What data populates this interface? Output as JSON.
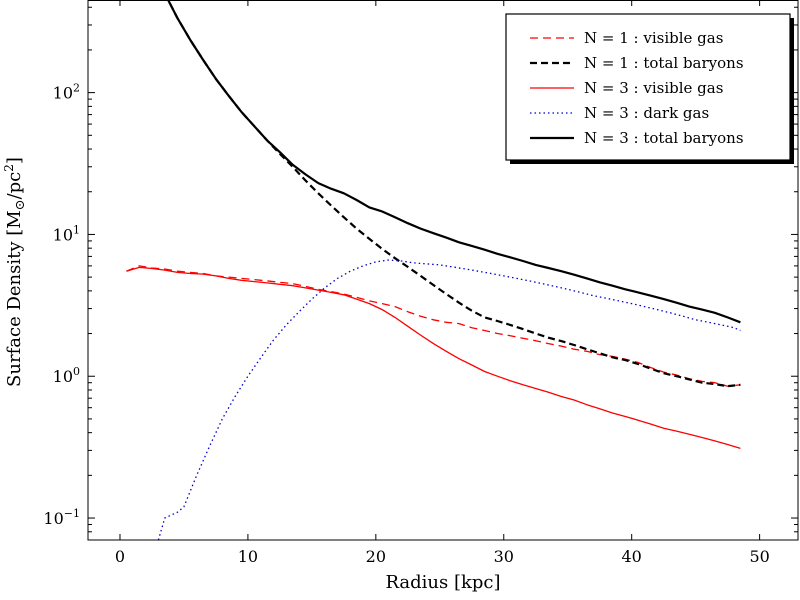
{
  "chart_data": {
    "type": "line",
    "xlabel": "Radius [kpc]",
    "ylabel": "Surface Density [M",
    "ylabel_sub": "⊙",
    "ylabel_tail": "/pc",
    "ylabel_sup": "2",
    "ylabel_close": "]",
    "xlim": [
      -2.5,
      53
    ],
    "ylim": [
      0.07,
      450
    ],
    "yscale": "log",
    "grid": false,
    "legend_position": "top-right",
    "x_ticks": [
      {
        "value": 0,
        "label": "0"
      },
      {
        "value": 10,
        "label": "10"
      },
      {
        "value": 20,
        "label": "20"
      },
      {
        "value": 30,
        "label": "30"
      },
      {
        "value": 40,
        "label": "40"
      },
      {
        "value": 50,
        "label": "50"
      }
    ],
    "y_ticks": [
      {
        "value": 0.1,
        "base": "10",
        "exp": "−1"
      },
      {
        "value": 1,
        "base": "10",
        "exp": "0"
      },
      {
        "value": 10,
        "base": "10",
        "exp": "1"
      },
      {
        "value": 100,
        "base": "10",
        "exp": "2"
      }
    ],
    "series": [
      {
        "name": "N = 1 : visible gas",
        "color": "#ff0000",
        "style": "dashed",
        "width": "normal",
        "x": [
          0.5,
          1.5,
          2.5,
          3.5,
          4.5,
          5.5,
          6.5,
          7.5,
          8.5,
          9.5,
          10.5,
          11.5,
          12.5,
          13.5,
          14.5,
          15.5,
          16.5,
          17.5,
          18.5,
          19.5,
          20.5,
          21.5,
          22.5,
          23.5,
          24.5,
          25.5,
          26.5,
          27.5,
          28.5,
          29.5,
          30.5,
          31.5,
          32.5,
          33.5,
          34.5,
          35.5,
          36.5,
          37.5,
          38.5,
          39.5,
          40.5,
          41.5,
          42.5,
          43.5,
          44.5,
          45.5,
          46.5,
          47.5,
          48.5
        ],
        "y": [
          5.5,
          6.0,
          5.8,
          5.7,
          5.5,
          5.4,
          5.3,
          5.1,
          5.0,
          4.9,
          4.8,
          4.7,
          4.6,
          4.5,
          4.3,
          4.1,
          3.95,
          3.8,
          3.6,
          3.4,
          3.25,
          3.1,
          2.85,
          2.65,
          2.5,
          2.4,
          2.35,
          2.2,
          2.1,
          2.0,
          1.93,
          1.85,
          1.78,
          1.7,
          1.63,
          1.55,
          1.5,
          1.42,
          1.38,
          1.32,
          1.25,
          1.15,
          1.07,
          1.02,
          0.96,
          0.92,
          0.9,
          0.85,
          0.87
        ]
      },
      {
        "name": "N = 1 : total baryons",
        "color": "#000000",
        "style": "dashed",
        "width": "thick",
        "x": [
          3.5,
          4.5,
          5.5,
          6.5,
          7.5,
          8.5,
          9.5,
          10.5,
          11.5,
          12.5,
          13.5,
          14.5,
          15.5,
          16.5,
          17.5,
          18.5,
          19.5,
          20.5,
          21.5,
          22.5,
          23.5,
          24.5,
          25.5,
          26.5,
          27.5,
          28.5,
          29.5,
          30.5,
          31.5,
          32.5,
          33.5,
          34.5,
          35.5,
          36.5,
          37.5,
          38.5,
          39.5,
          40.5,
          41.5,
          42.5,
          43.5,
          44.5,
          45.5,
          46.5,
          47.5,
          48.5
        ],
        "y": [
          500,
          335,
          235,
          170,
          125,
          95,
          73,
          58,
          46,
          37,
          30,
          24,
          19.5,
          16,
          13.2,
          11,
          9.3,
          7.9,
          6.8,
          5.9,
          5.1,
          4.4,
          3.8,
          3.3,
          2.9,
          2.6,
          2.45,
          2.3,
          2.15,
          2.0,
          1.87,
          1.77,
          1.66,
          1.55,
          1.45,
          1.36,
          1.3,
          1.22,
          1.13,
          1.05,
          1.0,
          0.95,
          0.9,
          0.88,
          0.85,
          0.87
        ]
      },
      {
        "name": "N = 3 : visible gas",
        "color": "#ff0000",
        "style": "solid",
        "width": "normal",
        "x": [
          0.5,
          1.5,
          2.5,
          3.5,
          4.5,
          5.5,
          6.5,
          7.5,
          8.5,
          9.5,
          10.5,
          11.5,
          12.5,
          13.5,
          14.5,
          15.5,
          16.5,
          17.5,
          18.5,
          19.5,
          20.5,
          21.5,
          22.5,
          23.5,
          24.5,
          25.5,
          26.5,
          27.5,
          28.5,
          29.5,
          30.5,
          31.5,
          32.5,
          33.5,
          34.5,
          35.5,
          36.5,
          37.5,
          38.5,
          39.5,
          40.5,
          41.5,
          42.5,
          43.5,
          44.5,
          45.5,
          46.5,
          47.5,
          48.5
        ],
        "y": [
          5.5,
          5.85,
          5.75,
          5.6,
          5.4,
          5.3,
          5.25,
          5.1,
          4.9,
          4.75,
          4.65,
          4.55,
          4.45,
          4.35,
          4.2,
          4.05,
          3.9,
          3.75,
          3.5,
          3.25,
          2.95,
          2.6,
          2.25,
          1.95,
          1.7,
          1.5,
          1.33,
          1.2,
          1.08,
          1.0,
          0.93,
          0.87,
          0.82,
          0.77,
          0.72,
          0.68,
          0.63,
          0.59,
          0.55,
          0.52,
          0.49,
          0.46,
          0.43,
          0.41,
          0.39,
          0.37,
          0.35,
          0.33,
          0.31
        ]
      },
      {
        "name": "N = 3 : dark gas",
        "color": "#0000cc",
        "style": "dotted",
        "width": "normal",
        "x": [
          3.0,
          3.5,
          4.5,
          5.0,
          6.0,
          7.0,
          8.0,
          9.0,
          10.0,
          11.0,
          12.0,
          13.0,
          14.0,
          15.0,
          16.0,
          17.0,
          18.0,
          19.0,
          20.0,
          21.0,
          22.0,
          23.0,
          24.0,
          25.0,
          26.0,
          27.0,
          28.0,
          29.0,
          30.0,
          31.0,
          32.0,
          33.0,
          34.0,
          35.0,
          36.0,
          37.0,
          38.0,
          39.0,
          40.0,
          41.0,
          42.0,
          43.0,
          44.0,
          45.0,
          46.0,
          47.0,
          48.0,
          48.5
        ],
        "y": [
          0.07,
          0.1,
          0.11,
          0.12,
          0.2,
          0.32,
          0.5,
          0.72,
          1.0,
          1.35,
          1.8,
          2.3,
          2.85,
          3.5,
          4.2,
          4.9,
          5.5,
          6.0,
          6.4,
          6.6,
          6.5,
          6.3,
          6.2,
          6.1,
          5.9,
          5.7,
          5.5,
          5.3,
          5.1,
          4.9,
          4.7,
          4.5,
          4.3,
          4.1,
          3.9,
          3.7,
          3.55,
          3.4,
          3.25,
          3.1,
          2.95,
          2.8,
          2.65,
          2.5,
          2.4,
          2.3,
          2.2,
          2.1
        ]
      },
      {
        "name": "N = 3 : total baryons",
        "color": "#000000",
        "style": "solid",
        "width": "thick",
        "x": [
          3.5,
          4.5,
          5.5,
          6.5,
          7.5,
          8.5,
          9.5,
          10.5,
          11.5,
          12.5,
          13.5,
          14.5,
          15.5,
          16.5,
          17.5,
          18.5,
          19.5,
          20.5,
          21.5,
          22.5,
          23.5,
          24.5,
          25.5,
          26.5,
          27.5,
          28.5,
          29.5,
          30.5,
          31.5,
          32.5,
          33.5,
          34.5,
          35.5,
          36.5,
          37.5,
          38.5,
          39.5,
          40.5,
          41.5,
          42.5,
          43.5,
          44.5,
          45.5,
          46.5,
          47.5,
          48.5
        ],
        "y": [
          500,
          335,
          235,
          170,
          125,
          95,
          73,
          58,
          46,
          38,
          31,
          26.5,
          23,
          21,
          19.5,
          17.5,
          15.5,
          14.5,
          13.2,
          12.0,
          11.0,
          10.2,
          9.5,
          8.8,
          8.3,
          7.8,
          7.3,
          6.9,
          6.5,
          6.1,
          5.8,
          5.5,
          5.2,
          4.9,
          4.6,
          4.35,
          4.1,
          3.9,
          3.7,
          3.5,
          3.3,
          3.1,
          2.95,
          2.8,
          2.6,
          2.4
        ]
      }
    ]
  }
}
